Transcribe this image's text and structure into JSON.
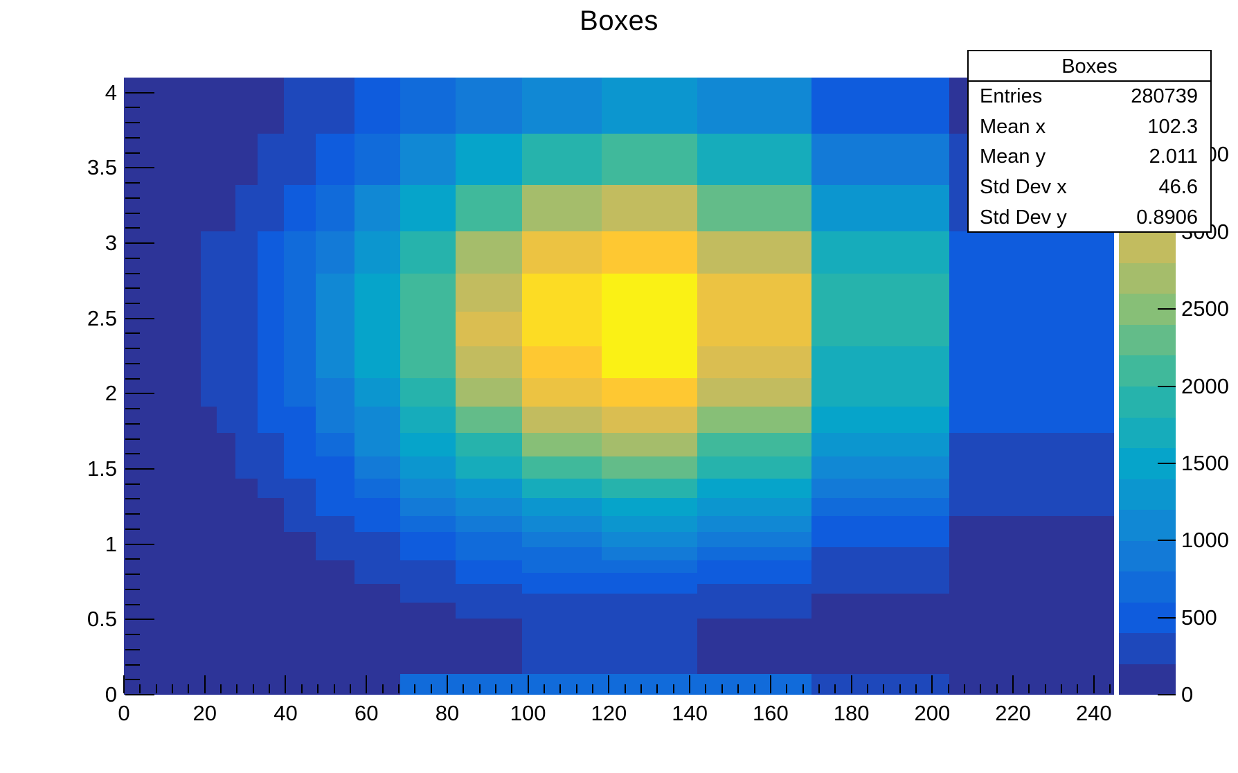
{
  "title": "Boxes",
  "stats_box": {
    "title": "Boxes",
    "rows": [
      {
        "label": "Entries",
        "value": "280739"
      },
      {
        "label": "Mean x",
        "value": "102.3"
      },
      {
        "label": "Mean y",
        "value": "2.011"
      },
      {
        "label": "Std Dev x",
        "value": "46.6"
      },
      {
        "label": "Std Dev y",
        "value": "0.8906"
      }
    ]
  },
  "chart_data": {
    "type": "heatmap",
    "title": "Boxes",
    "xlabel": "",
    "ylabel": "",
    "x_range": [
      0,
      245
    ],
    "y_range": [
      0,
      4.1
    ],
    "x_ticks": [
      0,
      20,
      40,
      60,
      80,
      100,
      120,
      140,
      160,
      180,
      200,
      220,
      240
    ],
    "x_minor_step": 4,
    "y_ticks": [
      0,
      0.5,
      1,
      1.5,
      2,
      2.5,
      3,
      3.5,
      4
    ],
    "y_minor_step": 0.1,
    "z_ticks": [
      0,
      500,
      1000,
      1500,
      2000,
      2500,
      3000,
      3500
    ],
    "z_max": 4000,
    "palette_levels": 20,
    "palette_stops": [
      "#352A87",
      "#0F5CDD",
      "#1481D6",
      "#06A4CA",
      "#2EB7A4",
      "#87BF77",
      "#D1BB59",
      "#FEC832",
      "#F9FB0E"
    ],
    "grid": false,
    "legend_position": "right-palette",
    "x_edges": [
      0,
      19.1,
      22.9,
      27.5,
      33.0,
      39.6,
      47.5,
      57.0,
      68.4,
      82.0,
      98.5,
      118.2,
      141.8,
      170.1,
      204.2,
      245
    ],
    "y_edges": [
      0,
      0.138,
      0.504,
      0.61,
      0.671,
      0.738,
      0.811,
      0.892,
      0.982,
      1.08,
      1.188,
      1.306,
      1.437,
      1.581,
      1.739,
      1.913,
      2.104,
      2.314,
      2.546,
      2.8,
      3.08,
      3.388,
      3.727,
      4.1
    ],
    "values_row_order": "bottom-to-top",
    "values": [
      [
        30,
        45,
        60,
        85,
        110,
        140,
        160,
        180,
        700,
        730,
        760,
        740,
        700,
        320,
        150
      ],
      [
        8,
        11,
        15,
        20,
        29,
        41,
        59,
        85,
        120,
        164,
        204,
        218,
        181,
        101,
        30
      ],
      [
        11,
        15,
        20,
        28,
        40,
        56,
        82,
        118,
        166,
        228,
        282,
        302,
        251,
        140,
        42
      ],
      [
        14,
        18,
        25,
        35,
        49,
        70,
        101,
        145,
        205,
        281,
        349,
        373,
        310,
        174,
        51
      ],
      [
        17,
        22,
        30,
        42,
        59,
        84,
        121,
        174,
        246,
        338,
        419,
        448,
        373,
        209,
        62
      ],
      [
        20,
        27,
        37,
        51,
        71,
        101,
        147,
        211,
        298,
        410,
        508,
        543,
        452,
        253,
        75
      ],
      [
        25,
        33,
        45,
        62,
        87,
        124,
        180,
        259,
        366,
        502,
        623,
        666,
        554,
        310,
        92
      ],
      [
        30,
        40,
        55,
        77,
        108,
        154,
        222,
        320,
        452,
        621,
        770,
        823,
        685,
        383,
        113
      ],
      [
        37,
        49,
        67,
        93,
        131,
        187,
        270,
        390,
        549,
        755,
        936,
        1001,
        832,
        466,
        138
      ],
      [
        45,
        60,
        83,
        114,
        161,
        229,
        332,
        478,
        674,
        926,
        1148,
        1228,
        1021,
        571,
        169
      ],
      [
        55,
        73,
        100,
        139,
        196,
        278,
        403,
        580,
        819,
        1124,
        1394,
        1491,
        1240,
        694,
        205
      ],
      [
        68,
        90,
        123,
        171,
        240,
        342,
        495,
        714,
        1007,
        1382,
        1714,
        1833,
        1525,
        853,
        253
      ],
      [
        81,
        108,
        149,
        206,
        290,
        413,
        597,
        860,
        1213,
        1666,
        2066,
        2210,
        1838,
        1028,
        304
      ],
      [
        97,
        129,
        177,
        244,
        344,
        490,
        709,
        1022,
        1441,
        1980,
        2454,
        2625,
        2183,
        1222,
        362
      ],
      [
        113,
        150,
        207,
        286,
        402,
        573,
        829,
        1194,
        1685,
        2313,
        2868,
        3068,
        2552,
        1428,
        423
      ],
      [
        128,
        205,
        235,
        324,
        457,
        650,
        941,
        1356,
        1913,
        2627,
        3257,
        3483,
        2897,
        1621,
        480
      ],
      [
        141,
        215,
        257,
        355,
        500,
        712,
        1031,
        1485,
        2094,
        2876,
        3566,
        3814,
        3172,
        1775,
        525
      ],
      [
        147,
        225,
        269,
        372,
        524,
        746,
        1080,
        1556,
        2195,
        3014,
        3737,
        3997,
        3324,
        1860,
        551
      ],
      [
        143,
        215,
        262,
        363,
        511,
        727,
        1052,
        1516,
        2139,
        2937,
        3641,
        3895,
        3239,
        1813,
        537
      ],
      [
        130,
        205,
        237,
        328,
        462,
        657,
        951,
        1370,
        1933,
        2654,
        3291,
        3520,
        2927,
        1638,
        485
      ],
      [
        105,
        140,
        192,
        265,
        374,
        532,
        770,
        1109,
        1565,
        2149,
        2665,
        2850,
        2370,
        1326,
        393
      ],
      [
        74,
        99,
        136,
        188,
        265,
        377,
        546,
        787,
        1110,
        1524,
        1890,
        2021,
        1681,
        941,
        278
      ],
      [
        44,
        59,
        81,
        112,
        158,
        225,
        326,
        470,
        663,
        911,
        1129,
        1207,
        1004,
        562,
        166
      ]
    ]
  }
}
